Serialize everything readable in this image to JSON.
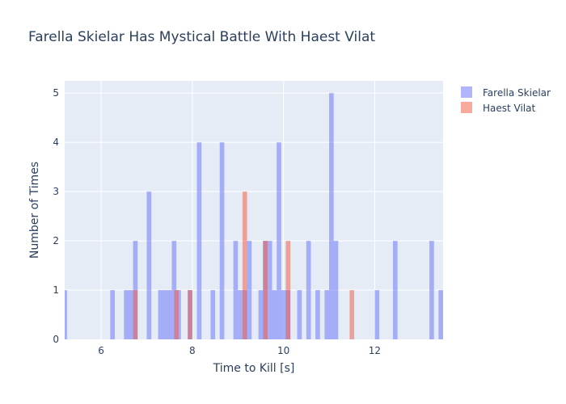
{
  "chart_data": {
    "type": "histogram",
    "title": "Farella Skielar Has Mystical Battle With Haest Vilat",
    "xlabel": "Time to Kill [s]",
    "ylabel": "Number of Times",
    "xlim": [
      5.2,
      13.5
    ],
    "ylim": [
      0,
      5.25
    ],
    "x_ticks": [
      6,
      8,
      10,
      12
    ],
    "y_ticks": [
      0,
      1,
      2,
      3,
      4,
      5
    ],
    "bin_width": 0.1,
    "grid": true,
    "legend_position": "top-right",
    "series": [
      {
        "name": "Farella Skielar",
        "color": "#636efa",
        "opacity": 0.5,
        "bins": [
          {
            "x": 5.2,
            "count": 1
          },
          {
            "x": 6.25,
            "count": 1
          },
          {
            "x": 6.55,
            "count": 1
          },
          {
            "x": 6.65,
            "count": 1
          },
          {
            "x": 6.75,
            "count": 2
          },
          {
            "x": 7.05,
            "count": 3
          },
          {
            "x": 7.3,
            "count": 1
          },
          {
            "x": 7.4,
            "count": 1
          },
          {
            "x": 7.5,
            "count": 1
          },
          {
            "x": 7.6,
            "count": 2
          },
          {
            "x": 7.7,
            "count": 1
          },
          {
            "x": 7.95,
            "count": 1
          },
          {
            "x": 8.15,
            "count": 4
          },
          {
            "x": 8.45,
            "count": 1
          },
          {
            "x": 8.65,
            "count": 4
          },
          {
            "x": 8.95,
            "count": 2
          },
          {
            "x": 9.05,
            "count": 1
          },
          {
            "x": 9.15,
            "count": 1
          },
          {
            "x": 9.25,
            "count": 2
          },
          {
            "x": 9.5,
            "count": 1
          },
          {
            "x": 9.6,
            "count": 2
          },
          {
            "x": 9.7,
            "count": 2
          },
          {
            "x": 9.8,
            "count": 1
          },
          {
            "x": 9.9,
            "count": 4
          },
          {
            "x": 10.0,
            "count": 1
          },
          {
            "x": 10.1,
            "count": 1
          },
          {
            "x": 10.35,
            "count": 1
          },
          {
            "x": 10.55,
            "count": 2
          },
          {
            "x": 10.75,
            "count": 1
          },
          {
            "x": 10.95,
            "count": 1
          },
          {
            "x": 11.05,
            "count": 5
          },
          {
            "x": 11.15,
            "count": 2
          },
          {
            "x": 12.05,
            "count": 1
          },
          {
            "x": 12.45,
            "count": 2
          },
          {
            "x": 13.25,
            "count": 2
          },
          {
            "x": 13.45,
            "count": 1
          }
        ]
      },
      {
        "name": "Haest Vilat",
        "color": "#ef553b",
        "opacity": 0.5,
        "bins": [
          {
            "x": 6.75,
            "count": 1
          },
          {
            "x": 7.65,
            "count": 1
          },
          {
            "x": 7.95,
            "count": 1
          },
          {
            "x": 9.15,
            "count": 3
          },
          {
            "x": 9.6,
            "count": 2
          },
          {
            "x": 10.1,
            "count": 2
          },
          {
            "x": 11.5,
            "count": 1
          }
        ]
      }
    ]
  }
}
